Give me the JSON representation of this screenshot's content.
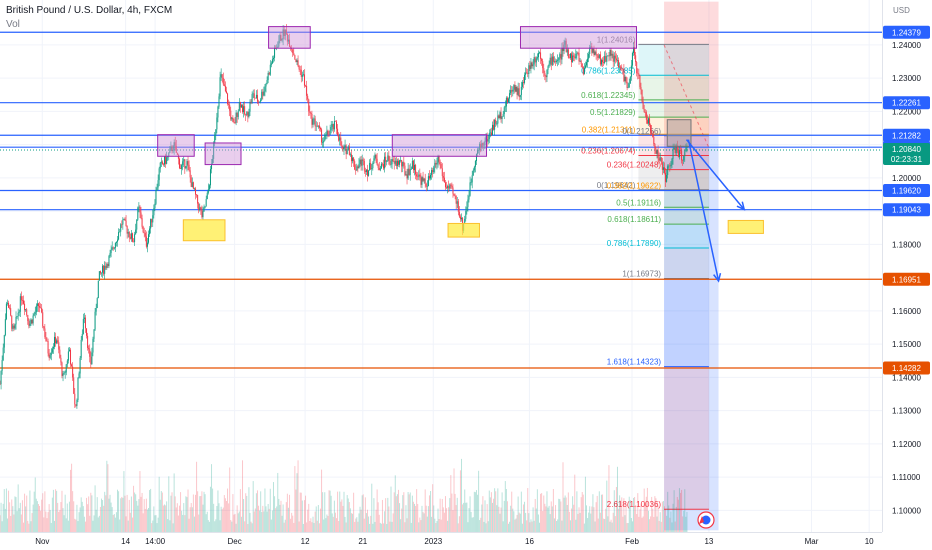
{
  "header": {
    "title": "British Pound / U.S. Dollar, 4h, FXCM",
    "volume_label": "Vol"
  },
  "chart_data": {
    "type": "candlestick",
    "symbol": "GBPUSD",
    "timeframe": "4h",
    "y_unit_label": "USD",
    "ylim": [
      1.0935,
      1.2535
    ],
    "y_ticks": [
      1.24,
      1.23,
      1.22,
      1.21,
      1.2,
      1.19,
      1.18,
      1.16,
      1.15,
      1.14,
      1.13,
      1.12,
      1.11,
      1.1
    ],
    "y_tick_labels": [
      "1.24000",
      "1.23000",
      "1.22000",
      "1.21000",
      "1.20000",
      "1.19000",
      "1.18000",
      "1.16000",
      "1.15000",
      "1.14000",
      "1.13000",
      "1.12000",
      "1.11000",
      "1.10000"
    ],
    "x_ticks": [
      {
        "label": "Nov",
        "day": 0
      },
      {
        "label": "14",
        "day": 13
      },
      {
        "label": "14:00",
        "day": 17.6
      },
      {
        "label": "Dec",
        "day": 30
      },
      {
        "label": "12",
        "day": 41
      },
      {
        "label": "21",
        "day": 50
      },
      {
        "label": "2023",
        "day": 61
      },
      {
        "label": "16",
        "day": 76
      },
      {
        "label": "Feb",
        "day": 92
      },
      {
        "label": "13",
        "day": 104
      },
      {
        "label": "Mar",
        "day": 120
      },
      {
        "label": "10",
        "day": 129
      }
    ],
    "x_range_days": [
      -6.6,
      131
    ],
    "horizontal_levels": [
      {
        "value": 1.24379,
        "label": "1.24379",
        "color": "#2962ff"
      },
      {
        "value": 1.22261,
        "label": "1.22261",
        "color": "#2962ff"
      },
      {
        "value": 1.21282,
        "label": "1.21282",
        "color": "#2962ff"
      },
      {
        "value": 1.20923,
        "label": "1.20923",
        "color": "#2962ff"
      },
      {
        "value": 1.1962,
        "label": "1.19620",
        "color": "#2962ff"
      },
      {
        "value": 1.19043,
        "label": "1.19043",
        "color": "#2962ff"
      },
      {
        "value": 1.16951,
        "label": "1.16951",
        "color": "#e65100"
      },
      {
        "value": 1.14282,
        "label": "1.14282",
        "color": "#e65100"
      }
    ],
    "current_price": {
      "value": 1.2084,
      "label": "1.20840",
      "countdown": "02:23:31",
      "color": "#089981"
    },
    "fib_retracement": {
      "day_range": [
        93,
        104
      ],
      "levels": [
        {
          "ratio": "1",
          "value": 1.24016,
          "label": "1(1.24016)",
          "color": "#787b86"
        },
        {
          "ratio": "0.786",
          "value": 1.23085,
          "label": "0.786(1.23085)",
          "color": "#00bcd4"
        },
        {
          "ratio": "0.618",
          "value": 1.22345,
          "label": "0.618(1.22345)",
          "color": "#4caf50"
        },
        {
          "ratio": "0.5",
          "value": 1.21829,
          "label": "0.5(1.21829)",
          "color": "#4caf50"
        },
        {
          "ratio": "0.382",
          "value": 1.21311,
          "label": "0.382(1.21311)",
          "color": "#ff9800"
        },
        {
          "ratio": "0.236",
          "value": 1.20674,
          "label": "0.236(1.20674)",
          "color": "#f23645"
        },
        {
          "ratio": "0",
          "value": 1.19642,
          "label": "0(1.19642)",
          "color": "#787b86"
        }
      ]
    },
    "fib_extension": {
      "day_range": [
        97,
        104
      ],
      "levels": [
        {
          "ratio": "0",
          "value": 1.21266,
          "label": "0(1.21266)",
          "color": "#787b86"
        },
        {
          "ratio": "0.236",
          "value": 1.20248,
          "label": "0.236(1.20248)",
          "color": "#f23645"
        },
        {
          "ratio": "0.382",
          "value": 1.19622,
          "label": "0.382(1.19622)",
          "color": "#ff9800"
        },
        {
          "ratio": "0.5",
          "value": 1.19116,
          "label": "0.5(1.19116)",
          "color": "#4caf50"
        },
        {
          "ratio": "0.618",
          "value": 1.18611,
          "label": "0.618(1.18611)",
          "color": "#4caf50"
        },
        {
          "ratio": "0.786",
          "value": 1.1789,
          "label": "0.786(1.17890)",
          "color": "#00bcd4"
        },
        {
          "ratio": "1",
          "value": 1.16973,
          "label": "1(1.16973)",
          "color": "#787b86"
        },
        {
          "ratio": "1.618",
          "value": 1.14323,
          "label": "1.618(1.14323)",
          "color": "#2962ff"
        },
        {
          "ratio": "2.618",
          "value": 1.10036,
          "label": "2.618(1.10036)",
          "color": "#f23645"
        }
      ]
    },
    "position_tool": {
      "day_range": [
        97,
        105.5
      ],
      "entry": 1.21266,
      "target": 1.094,
      "stop": 1.253,
      "profit_color": "#2962ff",
      "loss_color": "#f23645"
    },
    "supply_zones": [
      {
        "day_range": [
          18,
          23.7
        ],
        "price_range": [
          1.2065,
          1.213
        ],
        "color": "#ce93d8"
      },
      {
        "day_range": [
          25.4,
          31
        ],
        "price_range": [
          1.204,
          1.2105
        ],
        "color": "#ce93d8"
      },
      {
        "day_range": [
          35.3,
          41.8
        ],
        "price_range": [
          1.239,
          1.2455
        ],
        "color": "#ce93d8"
      },
      {
        "day_range": [
          54.6,
          69.3
        ],
        "price_range": [
          1.2065,
          1.213
        ],
        "color": "#ce93d8"
      },
      {
        "day_range": [
          74.6,
          92.7
        ],
        "price_range": [
          1.239,
          1.2455
        ],
        "color": "#ce93d8"
      }
    ],
    "demand_zones": [
      {
        "day_range": [
          22,
          28.5
        ],
        "price_range": [
          1.1811,
          1.1874
        ],
        "color": "#ffeb3b"
      },
      {
        "day_range": [
          63.3,
          68.2
        ],
        "price_range": [
          1.1822,
          1.1863
        ],
        "color": "#ffeb3b"
      },
      {
        "day_range": [
          107,
          112.5
        ],
        "price_range": [
          1.1833,
          1.1872
        ],
        "color": "#ffeb3b"
      }
    ],
    "projection_arrows": [
      {
        "from": [
          100.5,
          1.2115
        ],
        "to": [
          109.5,
          1.1905
        ],
        "color": "#2962ff"
      },
      {
        "from": [
          100.8,
          1.2115
        ],
        "to": [
          105.5,
          1.169
        ],
        "color": "#2962ff"
      }
    ],
    "ohlc_path": [
      [
        -6.6,
        1.138
      ],
      [
        -5.5,
        1.164
      ],
      [
        -4.5,
        1.153
      ],
      [
        -3.2,
        1.165
      ],
      [
        -2.0,
        1.156
      ],
      [
        -0.5,
        1.162
      ],
      [
        1.0,
        1.147
      ],
      [
        2.2,
        1.152
      ],
      [
        3.3,
        1.139
      ],
      [
        4.2,
        1.149
      ],
      [
        5.2,
        1.13
      ],
      [
        6.5,
        1.16
      ],
      [
        7.5,
        1.143
      ],
      [
        8.8,
        1.17
      ],
      [
        10.5,
        1.176
      ],
      [
        12.5,
        1.187
      ],
      [
        14.2,
        1.181
      ],
      [
        15.0,
        1.191
      ],
      [
        16.2,
        1.18
      ],
      [
        17.2,
        1.189
      ],
      [
        18.3,
        1.203
      ],
      [
        19.5,
        1.206
      ],
      [
        20.5,
        1.21
      ],
      [
        21.6,
        1.203
      ],
      [
        22.5,
        1.205
      ],
      [
        23.3,
        1.198
      ],
      [
        24.3,
        1.192
      ],
      [
        25.0,
        1.188
      ],
      [
        25.8,
        1.195
      ],
      [
        26.8,
        1.21
      ],
      [
        27.8,
        1.231
      ],
      [
        28.8,
        1.224
      ],
      [
        29.8,
        1.215
      ],
      [
        30.8,
        1.223
      ],
      [
        31.8,
        1.218
      ],
      [
        32.8,
        1.225
      ],
      [
        33.8,
        1.223
      ],
      [
        34.8,
        1.228
      ],
      [
        35.8,
        1.235
      ],
      [
        36.8,
        1.241
      ],
      [
        37.8,
        1.244
      ],
      [
        38.8,
        1.24
      ],
      [
        39.8,
        1.234
      ],
      [
        40.8,
        1.23
      ],
      [
        41.8,
        1.218
      ],
      [
        42.8,
        1.216
      ],
      [
        43.8,
        1.211
      ],
      [
        44.8,
        1.214
      ],
      [
        45.8,
        1.216
      ],
      [
        46.8,
        1.208
      ],
      [
        47.8,
        1.209
      ],
      [
        48.8,
        1.203
      ],
      [
        49.8,
        1.205
      ],
      [
        50.8,
        1.202
      ],
      [
        51.8,
        1.206
      ],
      [
        52.8,
        1.203
      ],
      [
        53.8,
        1.206
      ],
      [
        54.8,
        1.204
      ],
      [
        55.8,
        1.205
      ],
      [
        56.8,
        1.201
      ],
      [
        57.8,
        1.204
      ],
      [
        58.8,
        1.2
      ],
      [
        59.8,
        1.198
      ],
      [
        60.8,
        1.201
      ],
      [
        61.8,
        1.206
      ],
      [
        62.8,
        1.198
      ],
      [
        63.8,
        1.196
      ],
      [
        64.8,
        1.192
      ],
      [
        65.6,
        1.185
      ],
      [
        66.6,
        1.196
      ],
      [
        67.5,
        1.206
      ],
      [
        68.5,
        1.21
      ],
      [
        69.5,
        1.212
      ],
      [
        70.5,
        1.216
      ],
      [
        71.5,
        1.219
      ],
      [
        72.5,
        1.223
      ],
      [
        73.5,
        1.228
      ],
      [
        74.5,
        1.225
      ],
      [
        75.5,
        1.232
      ],
      [
        76.5,
        1.235
      ],
      [
        77.5,
        1.238
      ],
      [
        78.5,
        1.231
      ],
      [
        79.5,
        1.236
      ],
      [
        80.5,
        1.235
      ],
      [
        81.5,
        1.24
      ],
      [
        82.5,
        1.236
      ],
      [
        83.5,
        1.237
      ],
      [
        84.5,
        1.232
      ],
      [
        85.5,
        1.24
      ],
      [
        86.5,
        1.236
      ],
      [
        87.5,
        1.235
      ],
      [
        88.5,
        1.238
      ],
      [
        89.5,
        1.235
      ],
      [
        90.5,
        1.232
      ],
      [
        91.5,
        1.226
      ],
      [
        92.2,
        1.239
      ],
      [
        93.0,
        1.23
      ],
      [
        93.8,
        1.221
      ],
      [
        94.8,
        1.215
      ],
      [
        95.8,
        1.208
      ],
      [
        96.6,
        1.204
      ],
      [
        97.3,
        1.2
      ],
      [
        98.0,
        1.205
      ],
      [
        98.8,
        1.209
      ],
      [
        99.8,
        1.206
      ],
      [
        100.6,
        1.2084
      ]
    ]
  }
}
